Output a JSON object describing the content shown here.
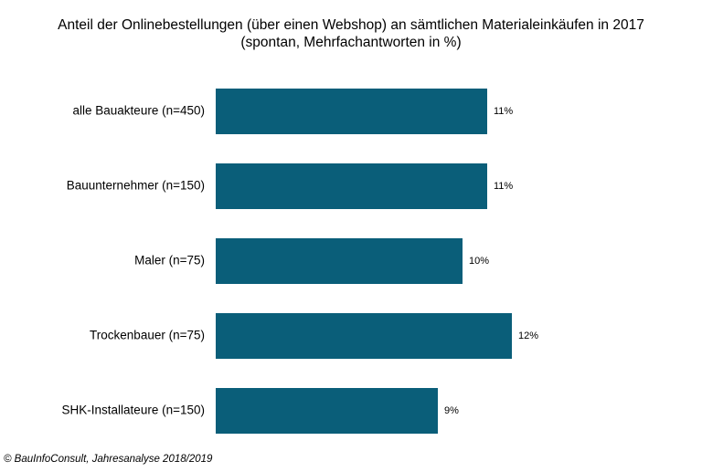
{
  "chart_data": {
    "type": "bar",
    "orientation": "horizontal",
    "title": "Anteil der Onlinebestellungen  (über einen Webshop) an sämtlichen Materialeinkäufen  in 2017",
    "subtitle": "(spontan, Mehrfachantworten in %)",
    "categories": [
      "alle Bauakteure (n=450)",
      "Bauunternehmer (n=150)",
      "Maler (n=75)",
      "Trockenbauer (n=75)",
      "SHK-Installateure (n=150)"
    ],
    "values": [
      11,
      11,
      10,
      12,
      9
    ],
    "value_labels": [
      "11%",
      "11%",
      "10%",
      "12%",
      "9%"
    ],
    "unit": "%",
    "xlim": [
      0,
      12
    ],
    "grid": false,
    "legend": "none",
    "colors": {
      "bar": "#0a5e79"
    }
  },
  "footer": {
    "source": "© BauInfoConsult, Jahresanalyse 2018/2019"
  }
}
